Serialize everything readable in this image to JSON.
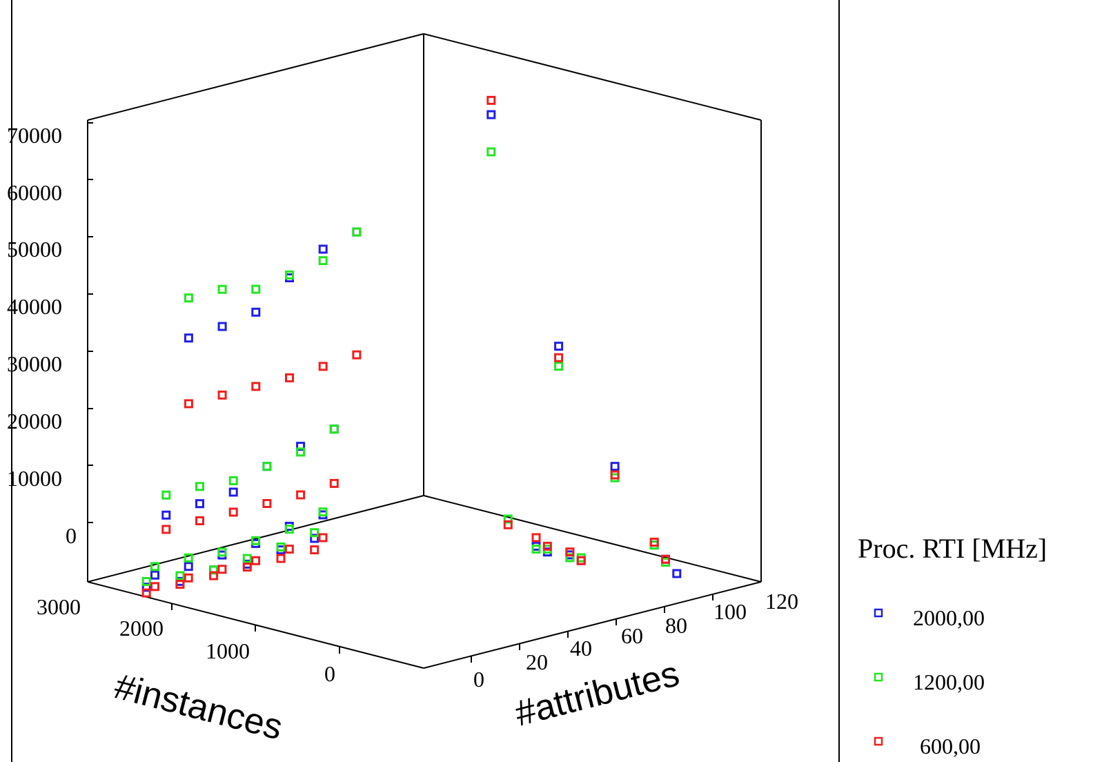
{
  "chart_data": {
    "type": "scatter",
    "subtype": "3d-scatter",
    "title": "",
    "axes": {
      "z": {
        "label": "",
        "ticks": [
          "0",
          "10000",
          "20000",
          "30000",
          "40000",
          "50000",
          "60000",
          "70000"
        ],
        "range": [
          0,
          70000
        ]
      },
      "instances": {
        "label": "#instances",
        "ticks": [
          "0",
          "1000",
          "2000",
          "3000"
        ],
        "range": [
          0,
          3000
        ]
      },
      "attributes": {
        "label": "#attributes",
        "ticks": [
          "0",
          "20",
          "40",
          "60",
          "80",
          "100",
          "120"
        ],
        "range": [
          0,
          120
        ]
      }
    },
    "grid": false,
    "legend": {
      "title": "Proc. RTI [MHz]",
      "placement": "right",
      "entries": [
        {
          "label": "2000,00",
          "color": "#1f1fe6"
        },
        {
          "label": "1200,00",
          "color": "#22e622"
        },
        {
          "label": "600,00",
          "color": "#f01f1f"
        }
      ]
    },
    "series": [
      {
        "name": "2000,00",
        "color": "#1f1fe6",
        "points": [
          {
            "instances": 2500,
            "attributes": 16,
            "value": 47000
          },
          {
            "instances": 2200,
            "attributes": 16,
            "value": 47500
          },
          {
            "instances": 1900,
            "attributes": 16,
            "value": 48500
          },
          {
            "instances": 1600,
            "attributes": 16,
            "value": 53000
          },
          {
            "instances": 1300,
            "attributes": 16,
            "value": 56500
          },
          {
            "instances": 1000,
            "attributes": 16,
            "value": 58000
          },
          {
            "instances": 2500,
            "attributes": 8,
            "value": 15000
          },
          {
            "instances": 2200,
            "attributes": 8,
            "value": 15500
          },
          {
            "instances": 1900,
            "attributes": 8,
            "value": 16000
          },
          {
            "instances": 1600,
            "attributes": 8,
            "value": 19000
          },
          {
            "instances": 1300,
            "attributes": 8,
            "value": 21000
          },
          {
            "instances": 1000,
            "attributes": 8,
            "value": 22500
          },
          {
            "instances": 2500,
            "attributes": 4,
            "value": 4000
          },
          {
            "instances": 2200,
            "attributes": 4,
            "value": 4000
          },
          {
            "instances": 1900,
            "attributes": 4,
            "value": 4500
          },
          {
            "instances": 1600,
            "attributes": 4,
            "value": 5000
          },
          {
            "instances": 1300,
            "attributes": 4,
            "value": 6500
          },
          {
            "instances": 1000,
            "attributes": 4,
            "value": 7000
          },
          {
            "instances": 2500,
            "attributes": 1,
            "value": 1500
          },
          {
            "instances": 2200,
            "attributes": 1,
            "value": 1000
          },
          {
            "instances": 1900,
            "attributes": 1,
            "value": 1500
          },
          {
            "instances": 1600,
            "attributes": 1,
            "value": 1000
          },
          {
            "instances": 1300,
            "attributes": 1,
            "value": 2000
          },
          {
            "instances": 1000,
            "attributes": 1,
            "value": 2500
          },
          {
            "instances": 0,
            "attributes": 24,
            "value": 74500
          },
          {
            "instances": 0,
            "attributes": 48,
            "value": 37000
          },
          {
            "instances": 0,
            "attributes": 68,
            "value": 18500
          },
          {
            "instances": 0,
            "attributes": 82,
            "value": 6500
          },
          {
            "instances": 0,
            "attributes": 86,
            "value": 4500
          },
          {
            "instances": 0,
            "attributes": 90,
            "value": 2500
          },
          {
            "instances": 0,
            "attributes": 40,
            "value": 1000
          },
          {
            "instances": 0,
            "attributes": 44,
            "value": 500
          },
          {
            "instances": 0,
            "attributes": 52,
            "value": 1000
          },
          {
            "instances": 0,
            "attributes": 56,
            "value": 500
          }
        ]
      },
      {
        "name": "1200,00",
        "color": "#22e622",
        "points": [
          {
            "instances": 2500,
            "attributes": 16,
            "value": 54000
          },
          {
            "instances": 2200,
            "attributes": 16,
            "value": 54000
          },
          {
            "instances": 1900,
            "attributes": 16,
            "value": 52500
          },
          {
            "instances": 1600,
            "attributes": 16,
            "value": 53500
          },
          {
            "instances": 1300,
            "attributes": 16,
            "value": 54500
          },
          {
            "instances": 1000,
            "attributes": 16,
            "value": 58000
          },
          {
            "instances": 2500,
            "attributes": 8,
            "value": 18500
          },
          {
            "instances": 2200,
            "attributes": 8,
            "value": 18500
          },
          {
            "instances": 1900,
            "attributes": 8,
            "value": 18000
          },
          {
            "instances": 1600,
            "attributes": 8,
            "value": 19000
          },
          {
            "instances": 1300,
            "attributes": 8,
            "value": 20000
          },
          {
            "instances": 1000,
            "attributes": 8,
            "value": 22500
          },
          {
            "instances": 2500,
            "attributes": 4,
            "value": 5500
          },
          {
            "instances": 2200,
            "attributes": 4,
            "value": 5500
          },
          {
            "instances": 1900,
            "attributes": 4,
            "value": 5000
          },
          {
            "instances": 1600,
            "attributes": 4,
            "value": 5500
          },
          {
            "instances": 1300,
            "attributes": 4,
            "value": 6000
          },
          {
            "instances": 1000,
            "attributes": 4,
            "value": 7500
          },
          {
            "instances": 2500,
            "attributes": 1,
            "value": 2500
          },
          {
            "instances": 2200,
            "attributes": 1,
            "value": 2000
          },
          {
            "instances": 1900,
            "attributes": 1,
            "value": 1500
          },
          {
            "instances": 1600,
            "attributes": 1,
            "value": 2000
          },
          {
            "instances": 1300,
            "attributes": 1,
            "value": 2500
          },
          {
            "instances": 1000,
            "attributes": 1,
            "value": 3500
          },
          {
            "instances": 0,
            "attributes": 24,
            "value": 68000
          },
          {
            "instances": 0,
            "attributes": 48,
            "value": 33500
          },
          {
            "instances": 0,
            "attributes": 68,
            "value": 16500
          },
          {
            "instances": 0,
            "attributes": 82,
            "value": 6500
          },
          {
            "instances": 0,
            "attributes": 86,
            "value": 4000
          },
          {
            "instances": 0,
            "attributes": 40,
            "value": 500
          },
          {
            "instances": 0,
            "attributes": 44,
            "value": 1000
          },
          {
            "instances": 0,
            "attributes": 52,
            "value": 500
          },
          {
            "instances": 0,
            "attributes": 56,
            "value": 1000
          },
          {
            "instances": 0,
            "attributes": 30,
            "value": 4500
          }
        ]
      },
      {
        "name": "600,00",
        "color": "#f01f1f",
        "points": [
          {
            "instances": 2500,
            "attributes": 16,
            "value": 35500
          },
          {
            "instances": 2200,
            "attributes": 16,
            "value": 35500
          },
          {
            "instances": 1900,
            "attributes": 16,
            "value": 35500
          },
          {
            "instances": 1600,
            "attributes": 16,
            "value": 35500
          },
          {
            "instances": 1300,
            "attributes": 16,
            "value": 36000
          },
          {
            "instances": 1000,
            "attributes": 16,
            "value": 36500
          },
          {
            "instances": 2500,
            "attributes": 8,
            "value": 12500
          },
          {
            "instances": 2200,
            "attributes": 8,
            "value": 12500
          },
          {
            "instances": 1900,
            "attributes": 8,
            "value": 12500
          },
          {
            "instances": 1600,
            "attributes": 8,
            "value": 12500
          },
          {
            "instances": 1300,
            "attributes": 8,
            "value": 12500
          },
          {
            "instances": 1000,
            "attributes": 8,
            "value": 13000
          },
          {
            "instances": 2500,
            "attributes": 4,
            "value": 2000
          },
          {
            "instances": 2200,
            "attributes": 4,
            "value": 2000
          },
          {
            "instances": 1900,
            "attributes": 4,
            "value": 2000
          },
          {
            "instances": 1600,
            "attributes": 4,
            "value": 2000
          },
          {
            "instances": 1300,
            "attributes": 4,
            "value": 2500
          },
          {
            "instances": 1000,
            "attributes": 4,
            "value": 3000
          },
          {
            "instances": 2500,
            "attributes": 1,
            "value": 500
          },
          {
            "instances": 2200,
            "attributes": 1,
            "value": 500
          },
          {
            "instances": 1900,
            "attributes": 1,
            "value": 500
          },
          {
            "instances": 1600,
            "attributes": 1,
            "value": 500
          },
          {
            "instances": 1300,
            "attributes": 1,
            "value": 500
          },
          {
            "instances": 1000,
            "attributes": 1,
            "value": 500
          },
          {
            "instances": 0,
            "attributes": 24,
            "value": 77000
          },
          {
            "instances": 0,
            "attributes": 48,
            "value": 35000
          },
          {
            "instances": 0,
            "attributes": 68,
            "value": 17000
          },
          {
            "instances": 0,
            "attributes": 82,
            "value": 7000
          },
          {
            "instances": 0,
            "attributes": 86,
            "value": 4500
          },
          {
            "instances": 0,
            "attributes": 40,
            "value": 2500
          },
          {
            "instances": 0,
            "attributes": 44,
            "value": 1500
          },
          {
            "instances": 0,
            "attributes": 52,
            "value": 1500
          },
          {
            "instances": 0,
            "attributes": 56,
            "value": 500
          },
          {
            "instances": 0,
            "attributes": 30,
            "value": 3500
          }
        ]
      }
    ]
  }
}
